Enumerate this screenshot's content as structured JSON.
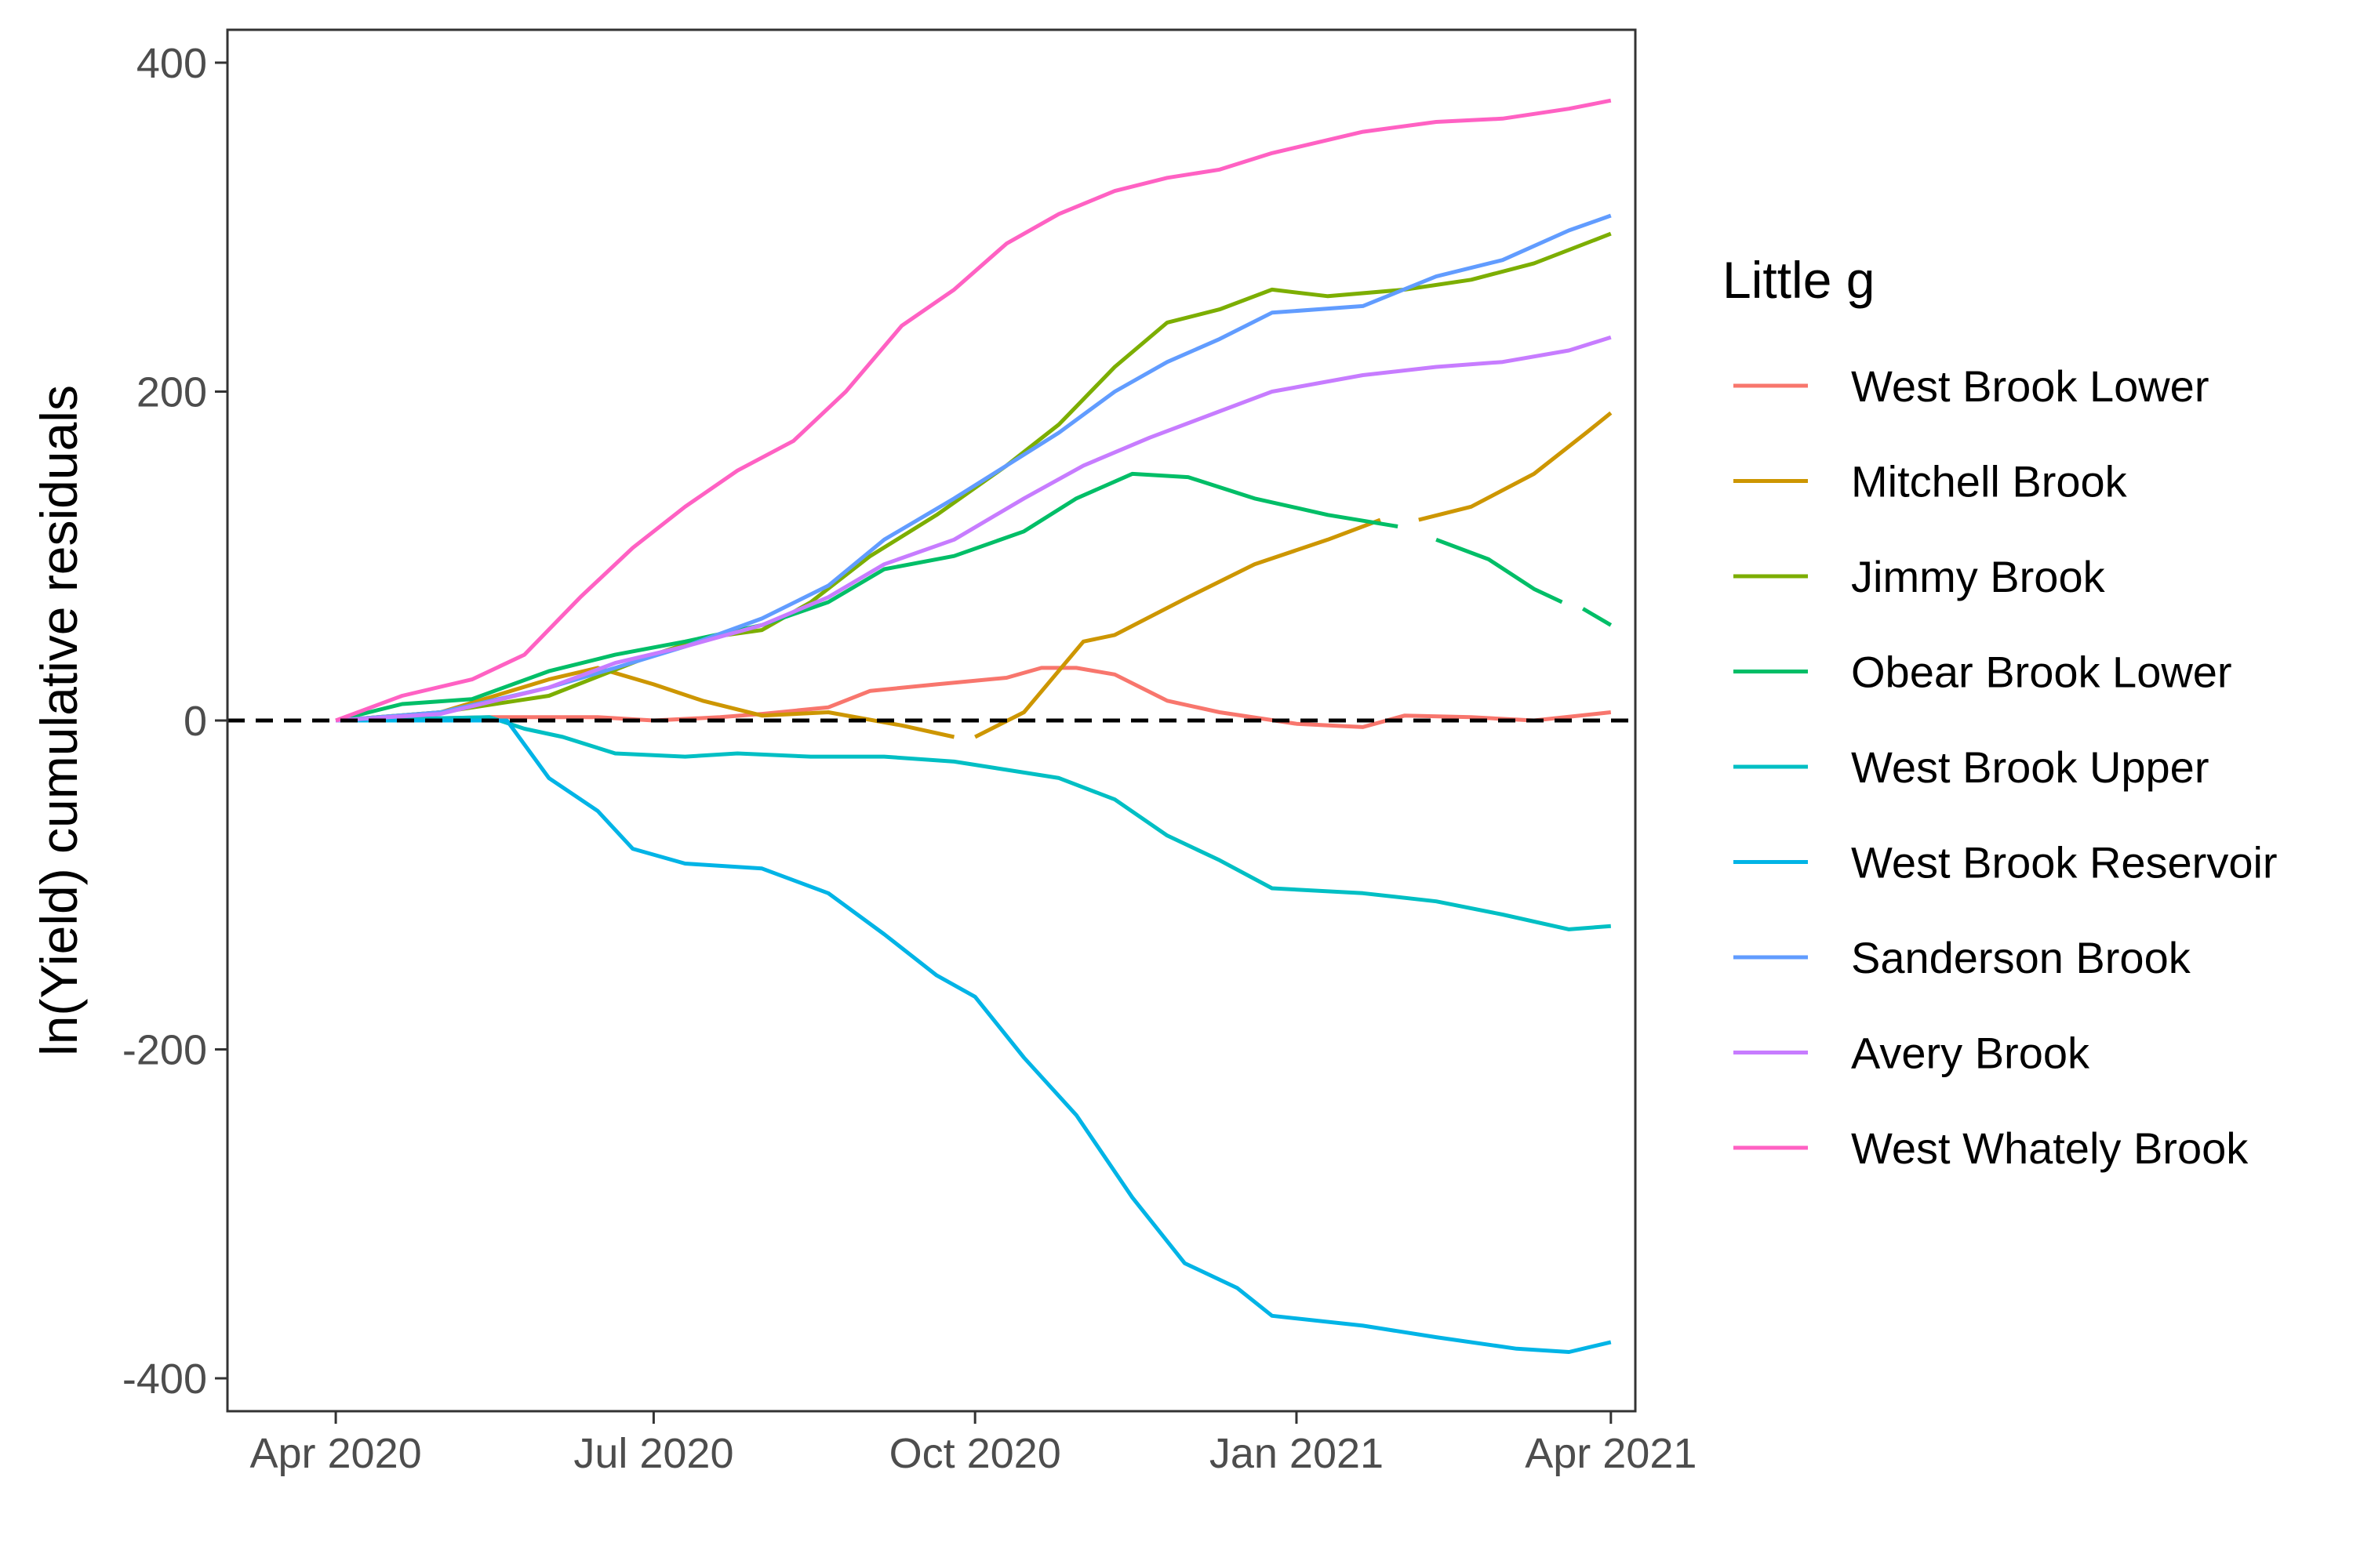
{
  "chart_data": {
    "type": "line",
    "title": "",
    "xlabel": "",
    "ylabel": "ln(Yield) cumulative residuals",
    "ylim": [
      -420,
      420
    ],
    "xlim": [
      "2020-03-01",
      "2021-04-08"
    ],
    "x_ticks": [
      {
        "date": "2020-04-01",
        "label": "Apr 2020"
      },
      {
        "date": "2020-07-01",
        "label": "Jul 2020"
      },
      {
        "date": "2020-10-01",
        "label": "Oct 2020"
      },
      {
        "date": "2021-01-01",
        "label": "Jan 2021"
      },
      {
        "date": "2021-04-01",
        "label": "Apr 2021"
      }
    ],
    "y_ticks": [
      {
        "value": 400,
        "label": "400"
      },
      {
        "value": 200,
        "label": "200"
      },
      {
        "value": 0,
        "label": "0"
      },
      {
        "value": -200,
        "label": "-200"
      },
      {
        "value": -400,
        "label": "-400"
      }
    ],
    "reference_line": {
      "y": 0,
      "style": "dashed",
      "color": "#000000"
    },
    "grid": false,
    "legend": {
      "title": "Little g",
      "position": "right"
    },
    "series": [
      {
        "name": "West Brook Lower",
        "color": "#F8766D",
        "points": [
          [
            "2020-04-01",
            0
          ],
          [
            "2020-05-15",
            2
          ],
          [
            "2020-06-15",
            2
          ],
          [
            "2020-07-01",
            0
          ],
          [
            "2020-07-20",
            2
          ],
          [
            "2020-08-01",
            4
          ],
          [
            "2020-08-20",
            8
          ],
          [
            "2020-09-01",
            18
          ],
          [
            "2020-09-20",
            22
          ],
          [
            "2020-10-10",
            26
          ],
          [
            "2020-10-20",
            32
          ],
          [
            "2020-10-30",
            32
          ],
          [
            "2020-11-10",
            28
          ],
          [
            "2020-11-25",
            12
          ],
          [
            "2020-12-10",
            5
          ],
          [
            "2021-01-01",
            -2
          ],
          [
            "2021-01-20",
            -4
          ],
          [
            "2021-02-01",
            3
          ],
          [
            "2021-02-20",
            2
          ],
          [
            "2021-03-10",
            0
          ],
          [
            "2021-04-01",
            5
          ]
        ]
      },
      {
        "name": "Mitchell Brook",
        "color": "#CD9600",
        "points": [
          [
            "2020-04-01",
            0
          ],
          [
            "2020-05-01",
            5
          ],
          [
            "2020-06-01",
            25
          ],
          [
            "2020-06-15",
            32
          ],
          [
            "2020-07-01",
            22
          ],
          [
            "2020-07-15",
            12
          ],
          [
            "2020-08-01",
            3
          ],
          [
            "2020-08-20",
            5
          ],
          [
            "2020-09-10",
            -3
          ],
          [
            "2020-09-25",
            -10
          ],
          null,
          [
            "2020-10-01",
            -10
          ],
          [
            "2020-10-15",
            5
          ],
          [
            "2020-11-01",
            48
          ],
          [
            "2020-11-10",
            52
          ],
          [
            "2020-12-01",
            75
          ],
          [
            "2020-12-20",
            95
          ],
          [
            "2021-01-10",
            110
          ],
          [
            "2021-01-25",
            122
          ],
          null,
          [
            "2021-02-05",
            122
          ],
          [
            "2021-02-20",
            130
          ],
          [
            "2021-03-10",
            150
          ],
          [
            "2021-03-25",
            175
          ],
          [
            "2021-04-01",
            187
          ]
        ]
      },
      {
        "name": "Jimmy Brook",
        "color": "#7CAE00",
        "points": [
          [
            "2020-04-01",
            0
          ],
          [
            "2020-05-01",
            5
          ],
          [
            "2020-06-01",
            15
          ],
          [
            "2020-07-01",
            40
          ],
          [
            "2020-07-15",
            50
          ],
          [
            "2020-08-01",
            55
          ],
          [
            "2020-08-15",
            72
          ],
          [
            "2020-09-01",
            100
          ],
          [
            "2020-09-20",
            125
          ],
          [
            "2020-10-10",
            155
          ],
          [
            "2020-10-25",
            180
          ],
          [
            "2020-11-10",
            215
          ],
          [
            "2020-11-25",
            242
          ],
          [
            "2020-12-10",
            250
          ],
          [
            "2020-12-25",
            262
          ],
          [
            "2021-01-10",
            258
          ],
          [
            "2021-02-01",
            262
          ],
          [
            "2021-02-20",
            268
          ],
          [
            "2021-03-10",
            278
          ],
          [
            "2021-04-01",
            296
          ]
        ]
      },
      {
        "name": "Obear Brook Lower",
        "color": "#00BE67",
        "points": [
          [
            "2020-04-01",
            0
          ],
          [
            "2020-04-20",
            10
          ],
          [
            "2020-05-10",
            13
          ],
          [
            "2020-06-01",
            30
          ],
          [
            "2020-06-20",
            40
          ],
          [
            "2020-07-10",
            48
          ],
          [
            "2020-08-01",
            58
          ],
          [
            "2020-08-20",
            72
          ],
          [
            "2020-09-05",
            92
          ],
          [
            "2020-09-25",
            100
          ],
          [
            "2020-10-15",
            115
          ],
          [
            "2020-10-30",
            135
          ],
          [
            "2020-11-15",
            150
          ],
          [
            "2020-12-01",
            148
          ],
          [
            "2020-12-20",
            135
          ],
          [
            "2021-01-10",
            125
          ],
          [
            "2021-01-30",
            118
          ],
          null,
          [
            "2021-02-10",
            110
          ],
          [
            "2021-02-25",
            98
          ],
          [
            "2021-03-10",
            80
          ],
          [
            "2021-03-18",
            72
          ],
          null,
          [
            "2021-03-24",
            68
          ],
          [
            "2021-04-01",
            58
          ]
        ]
      },
      {
        "name": "West Brook Upper",
        "color": "#00BFC4",
        "points": [
          [
            "2020-04-01",
            0
          ],
          [
            "2020-05-15",
            2
          ],
          [
            "2020-05-25",
            -5
          ],
          [
            "2020-06-05",
            -10
          ],
          [
            "2020-06-20",
            -20
          ],
          [
            "2020-07-10",
            -22
          ],
          [
            "2020-07-25",
            -20
          ],
          [
            "2020-08-15",
            -22
          ],
          [
            "2020-09-05",
            -22
          ],
          [
            "2020-09-25",
            -25
          ],
          [
            "2020-10-10",
            -30
          ],
          [
            "2020-10-25",
            -35
          ],
          [
            "2020-11-10",
            -48
          ],
          [
            "2020-11-25",
            -70
          ],
          [
            "2020-12-10",
            -85
          ],
          [
            "2020-12-25",
            -102
          ],
          [
            "2021-01-20",
            -105
          ],
          [
            "2021-02-10",
            -110
          ],
          [
            "2021-03-01",
            -118
          ],
          [
            "2021-03-20",
            -127
          ],
          [
            "2021-04-01",
            -125
          ]
        ]
      },
      {
        "name": "West Brook Reservoir",
        "color": "#00B4E6",
        "points": [
          [
            "2020-04-01",
            0
          ],
          [
            "2020-05-20",
            0
          ],
          [
            "2020-06-01",
            -35
          ],
          [
            "2020-06-15",
            -55
          ],
          [
            "2020-06-25",
            -78
          ],
          [
            "2020-07-10",
            -87
          ],
          [
            "2020-08-01",
            -90
          ],
          [
            "2020-08-20",
            -105
          ],
          [
            "2020-09-05",
            -130
          ],
          [
            "2020-09-20",
            -155
          ],
          [
            "2020-10-01",
            -168
          ],
          [
            "2020-10-15",
            -205
          ],
          [
            "2020-10-30",
            -240
          ],
          [
            "2020-11-15",
            -290
          ],
          [
            "2020-11-30",
            -330
          ],
          [
            "2020-12-15",
            -345
          ],
          [
            "2020-12-25",
            -362
          ],
          [
            "2021-01-20",
            -368
          ],
          [
            "2021-02-10",
            -375
          ],
          [
            "2021-03-05",
            -382
          ],
          [
            "2021-03-20",
            -384
          ],
          [
            "2021-04-01",
            -378
          ]
        ]
      },
      {
        "name": "Sanderson Brook",
        "color": "#619CFF",
        "points": [
          [
            "2020-04-01",
            0
          ],
          [
            "2020-05-01",
            5
          ],
          [
            "2020-06-01",
            20
          ],
          [
            "2020-06-20",
            32
          ],
          [
            "2020-07-10",
            45
          ],
          [
            "2020-08-01",
            62
          ],
          [
            "2020-08-20",
            82
          ],
          [
            "2020-09-05",
            110
          ],
          [
            "2020-09-25",
            135
          ],
          [
            "2020-10-10",
            155
          ],
          [
            "2020-10-25",
            175
          ],
          [
            "2020-11-10",
            200
          ],
          [
            "2020-11-25",
            218
          ],
          [
            "2020-12-10",
            232
          ],
          [
            "2020-12-25",
            248
          ],
          [
            "2021-01-20",
            252
          ],
          [
            "2021-02-10",
            270
          ],
          [
            "2021-03-01",
            280
          ],
          [
            "2021-03-20",
            298
          ],
          [
            "2021-04-01",
            307
          ]
        ]
      },
      {
        "name": "Avery Brook",
        "color": "#C77CFF",
        "points": [
          [
            "2020-04-01",
            0
          ],
          [
            "2020-05-01",
            4
          ],
          [
            "2020-06-01",
            20
          ],
          [
            "2020-06-20",
            35
          ],
          [
            "2020-07-10",
            45
          ],
          [
            "2020-08-01",
            58
          ],
          [
            "2020-08-20",
            75
          ],
          [
            "2020-09-05",
            95
          ],
          [
            "2020-09-25",
            110
          ],
          [
            "2020-10-15",
            135
          ],
          [
            "2020-11-01",
            155
          ],
          [
            "2020-11-20",
            172
          ],
          [
            "2020-12-10",
            188
          ],
          [
            "2020-12-25",
            200
          ],
          [
            "2021-01-20",
            210
          ],
          [
            "2021-02-10",
            215
          ],
          [
            "2021-03-01",
            218
          ],
          [
            "2021-03-20",
            225
          ],
          [
            "2021-04-01",
            233
          ]
        ]
      },
      {
        "name": "West Whately Brook",
        "color": "#FF61C3",
        "points": [
          [
            "2020-04-01",
            0
          ],
          [
            "2020-04-20",
            15
          ],
          [
            "2020-05-10",
            25
          ],
          [
            "2020-05-25",
            40
          ],
          [
            "2020-06-10",
            75
          ],
          [
            "2020-06-25",
            105
          ],
          [
            "2020-07-10",
            130
          ],
          [
            "2020-07-25",
            152
          ],
          [
            "2020-08-10",
            170
          ],
          [
            "2020-08-25",
            200
          ],
          [
            "2020-09-10",
            240
          ],
          [
            "2020-09-25",
            262
          ],
          [
            "2020-10-10",
            290
          ],
          [
            "2020-10-25",
            308
          ],
          [
            "2020-11-10",
            322
          ],
          [
            "2020-11-25",
            330
          ],
          [
            "2020-12-10",
            335
          ],
          [
            "2020-12-25",
            345
          ],
          [
            "2021-01-20",
            358
          ],
          [
            "2021-02-10",
            364
          ],
          [
            "2021-03-01",
            366
          ],
          [
            "2021-03-20",
            372
          ],
          [
            "2021-04-01",
            377
          ]
        ]
      }
    ]
  }
}
